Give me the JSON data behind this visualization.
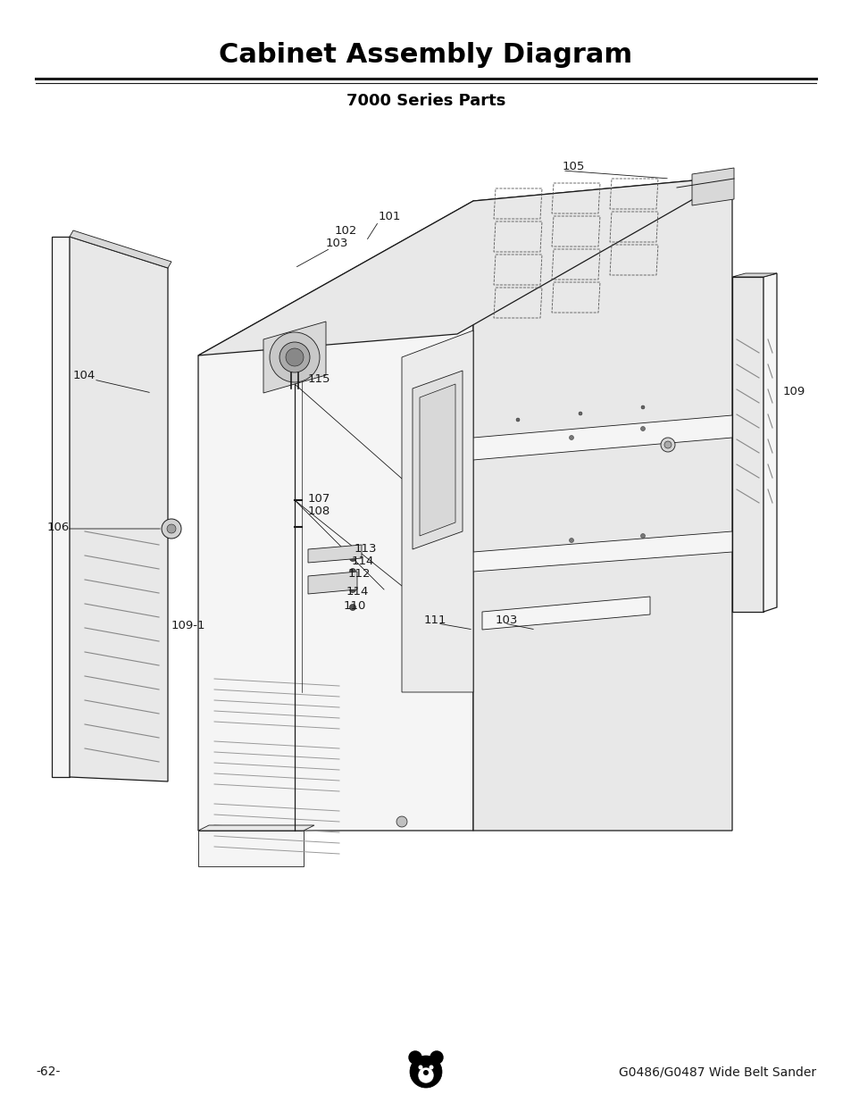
{
  "title": "Cabinet Assembly Diagram",
  "subtitle": "7000 Series Parts",
  "footer_left": "-62-",
  "footer_right": "G0486/G0487 Wide Belt Sander",
  "bg_color": "#ffffff",
  "title_fontsize": 22,
  "subtitle_fontsize": 13,
  "footer_fontsize": 10,
  "line_color": "#1a1a1a",
  "face_light": "#f5f5f5",
  "face_mid": "#e8e8e8",
  "face_dark": "#d8d8d8",
  "face_darker": "#c8c8c8"
}
